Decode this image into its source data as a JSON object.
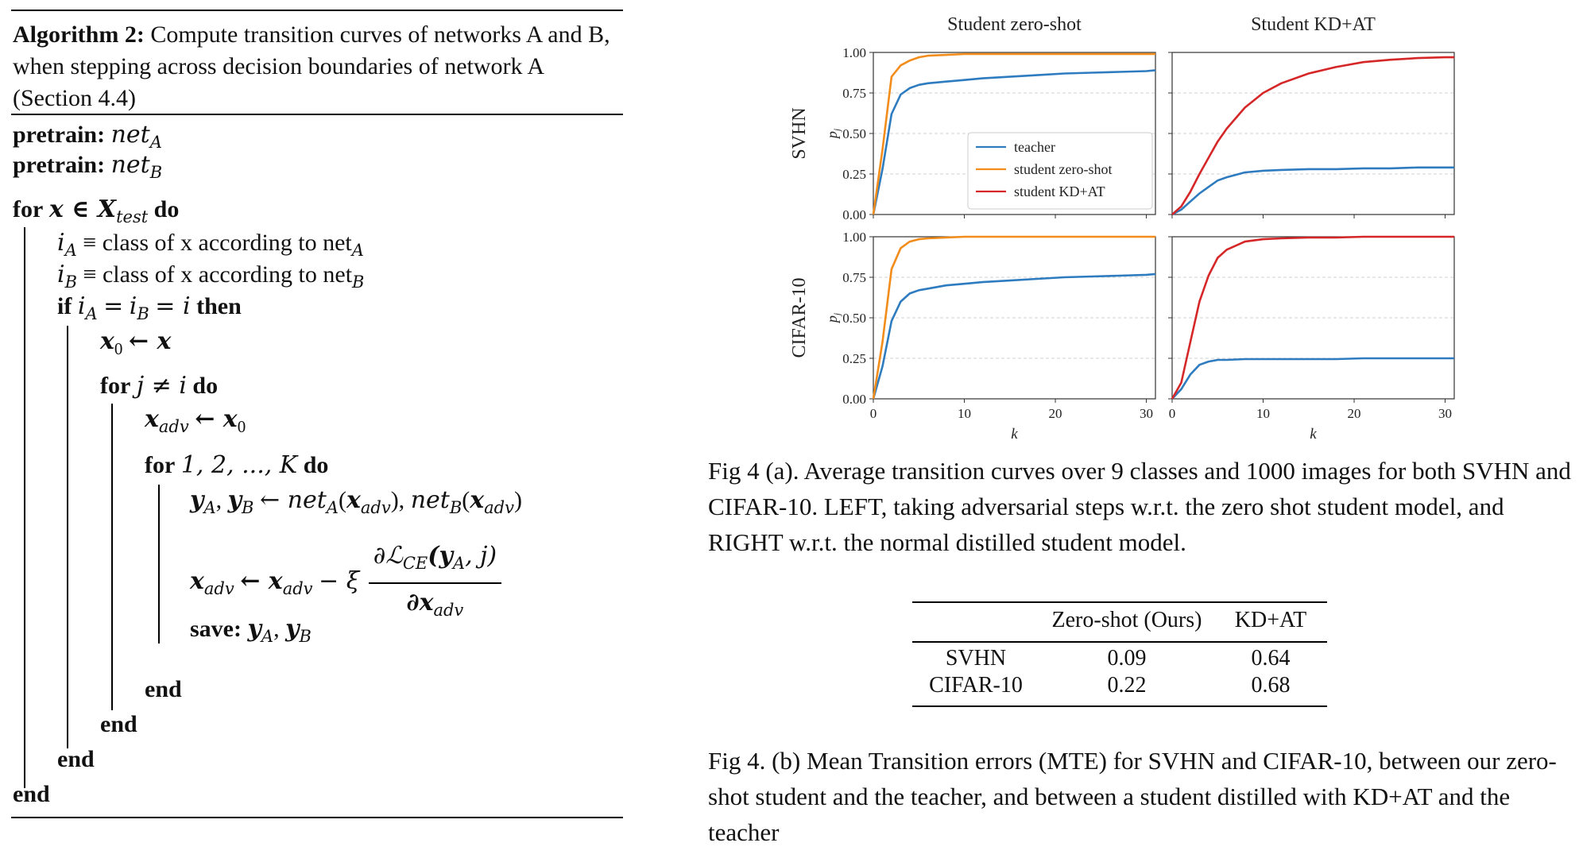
{
  "algorithm": {
    "label": "Algorithm 2:",
    "title_text": "Compute transition curves of networks A and B, when stepping across decision boundaries of network A (Section 4.4)",
    "kw_pretrain": "pretrain:",
    "net_a": "net",
    "sub_a": "A",
    "sub_b": "B",
    "kw_for": "for",
    "kw_do": "do",
    "kw_if": "if",
    "kw_then": "then",
    "kw_end": "end",
    "kw_save": "save:",
    "x_in_xtest": "x ∈ X",
    "sub_test": "test",
    "class_a_text": "≡ class of x according to net",
    "i_a": "i",
    "i_b": "i",
    "if_cond": "= i",
    "x0_line": "x",
    "x0_sub": "0",
    "x0_rhs": "← x",
    "for_j": "j ≠ i",
    "xadv_init": "x",
    "sub_adv": "adv",
    "xadv_init_rhs": "← x",
    "for_range": "1, 2, ..., K",
    "y_line": "y",
    "y_rhs": "← net",
    "update_lhs": "x",
    "update_mid": "← x",
    "update_minus": "− ξ",
    "frac_num": "∂ℒ",
    "frac_num_sub": "CE",
    "frac_num_tail": "(y",
    "frac_num_tail2": ", j)",
    "frac_den": "∂x",
    "save_vals": "y"
  },
  "figure": {
    "col_titles": [
      "Student zero-shot",
      "Student KD+AT"
    ],
    "row_labels": [
      "SVHN",
      "CIFAR-10"
    ],
    "y_label": "p",
    "y_label_sub": "j",
    "x_label": "k",
    "y_ticks": [
      "0.00",
      "0.25",
      "0.50",
      "0.75",
      "1.00"
    ],
    "x_ticks": [
      "0",
      "10",
      "20",
      "30"
    ],
    "legend": [
      "teacher",
      "student zero-shot",
      "student KD+AT"
    ],
    "colors": {
      "teacher": "#2e7cbf",
      "zero_shot": "#f28c1b",
      "kdat": "#d62728",
      "grid": "#d0d0d0"
    }
  },
  "chart_data": {
    "type": "line",
    "x": [
      0,
      1,
      2,
      3,
      4,
      5,
      6,
      8,
      10,
      12,
      15,
      18,
      21,
      24,
      27,
      30,
      31
    ],
    "ylim": [
      0,
      1
    ],
    "xlim": [
      0,
      31
    ],
    "xlabel": "k",
    "ylabel": "p_j",
    "panels": [
      {
        "row": "SVHN",
        "col": "Student zero-shot",
        "series": [
          {
            "name": "teacher",
            "values": [
              0.0,
              0.28,
              0.62,
              0.74,
              0.78,
              0.8,
              0.81,
              0.82,
              0.83,
              0.84,
              0.85,
              0.86,
              0.87,
              0.875,
              0.88,
              0.885,
              0.89
            ]
          },
          {
            "name": "student zero-shot",
            "values": [
              0.0,
              0.4,
              0.85,
              0.92,
              0.95,
              0.97,
              0.98,
              0.985,
              0.99,
              0.99,
              0.99,
              0.99,
              0.99,
              0.99,
              0.99,
              0.99,
              0.99
            ]
          }
        ]
      },
      {
        "row": "SVHN",
        "col": "Student KD+AT",
        "series": [
          {
            "name": "teacher",
            "values": [
              0.0,
              0.03,
              0.08,
              0.13,
              0.17,
              0.21,
              0.23,
              0.26,
              0.27,
              0.275,
              0.28,
              0.28,
              0.285,
              0.285,
              0.29,
              0.29,
              0.29
            ]
          },
          {
            "name": "student KD+AT",
            "values": [
              0.0,
              0.05,
              0.14,
              0.25,
              0.35,
              0.45,
              0.53,
              0.66,
              0.75,
              0.81,
              0.87,
              0.91,
              0.94,
              0.955,
              0.965,
              0.97,
              0.97
            ]
          }
        ]
      },
      {
        "row": "CIFAR-10",
        "col": "Student zero-shot",
        "series": [
          {
            "name": "teacher",
            "values": [
              0.0,
              0.2,
              0.48,
              0.6,
              0.65,
              0.67,
              0.68,
              0.7,
              0.71,
              0.72,
              0.73,
              0.74,
              0.75,
              0.755,
              0.76,
              0.765,
              0.77
            ]
          },
          {
            "name": "student zero-shot",
            "values": [
              0.0,
              0.35,
              0.8,
              0.93,
              0.97,
              0.985,
              0.99,
              0.995,
              1.0,
              1.0,
              1.0,
              1.0,
              1.0,
              1.0,
              1.0,
              1.0,
              1.0
            ]
          }
        ]
      },
      {
        "row": "CIFAR-10",
        "col": "Student KD+AT",
        "series": [
          {
            "name": "teacher",
            "values": [
              0.0,
              0.06,
              0.15,
              0.21,
              0.23,
              0.24,
              0.24,
              0.245,
              0.245,
              0.245,
              0.245,
              0.245,
              0.25,
              0.25,
              0.25,
              0.25,
              0.25
            ]
          },
          {
            "name": "student KD+AT",
            "values": [
              0.0,
              0.1,
              0.35,
              0.6,
              0.76,
              0.87,
              0.92,
              0.97,
              0.985,
              0.99,
              0.995,
              0.995,
              1.0,
              1.0,
              1.0,
              1.0,
              1.0
            ]
          }
        ]
      }
    ]
  },
  "caption_a": "Fig 4 (a). Average transition curves over 9 classes and 1000 images for both SVHN and CIFAR-10. LEFT, taking adversarial steps w.r.t. the zero shot student model, and RIGHT w.r.t. the normal distilled student model.",
  "table": {
    "headers": [
      "Zero-shot (Ours)",
      "KD+AT"
    ],
    "rows": [
      {
        "name": "SVHN",
        "zero_shot": "0.09",
        "kdat": "0.64"
      },
      {
        "name": "CIFAR-10",
        "zero_shot": "0.22",
        "kdat": "0.68"
      }
    ]
  },
  "caption_b": "Fig 4. (b) Mean Transition errors (MTE) for SVHN and CIFAR-10, between our zero-shot student and the teacher, and between a student distilled with KD+AT and the teacher"
}
